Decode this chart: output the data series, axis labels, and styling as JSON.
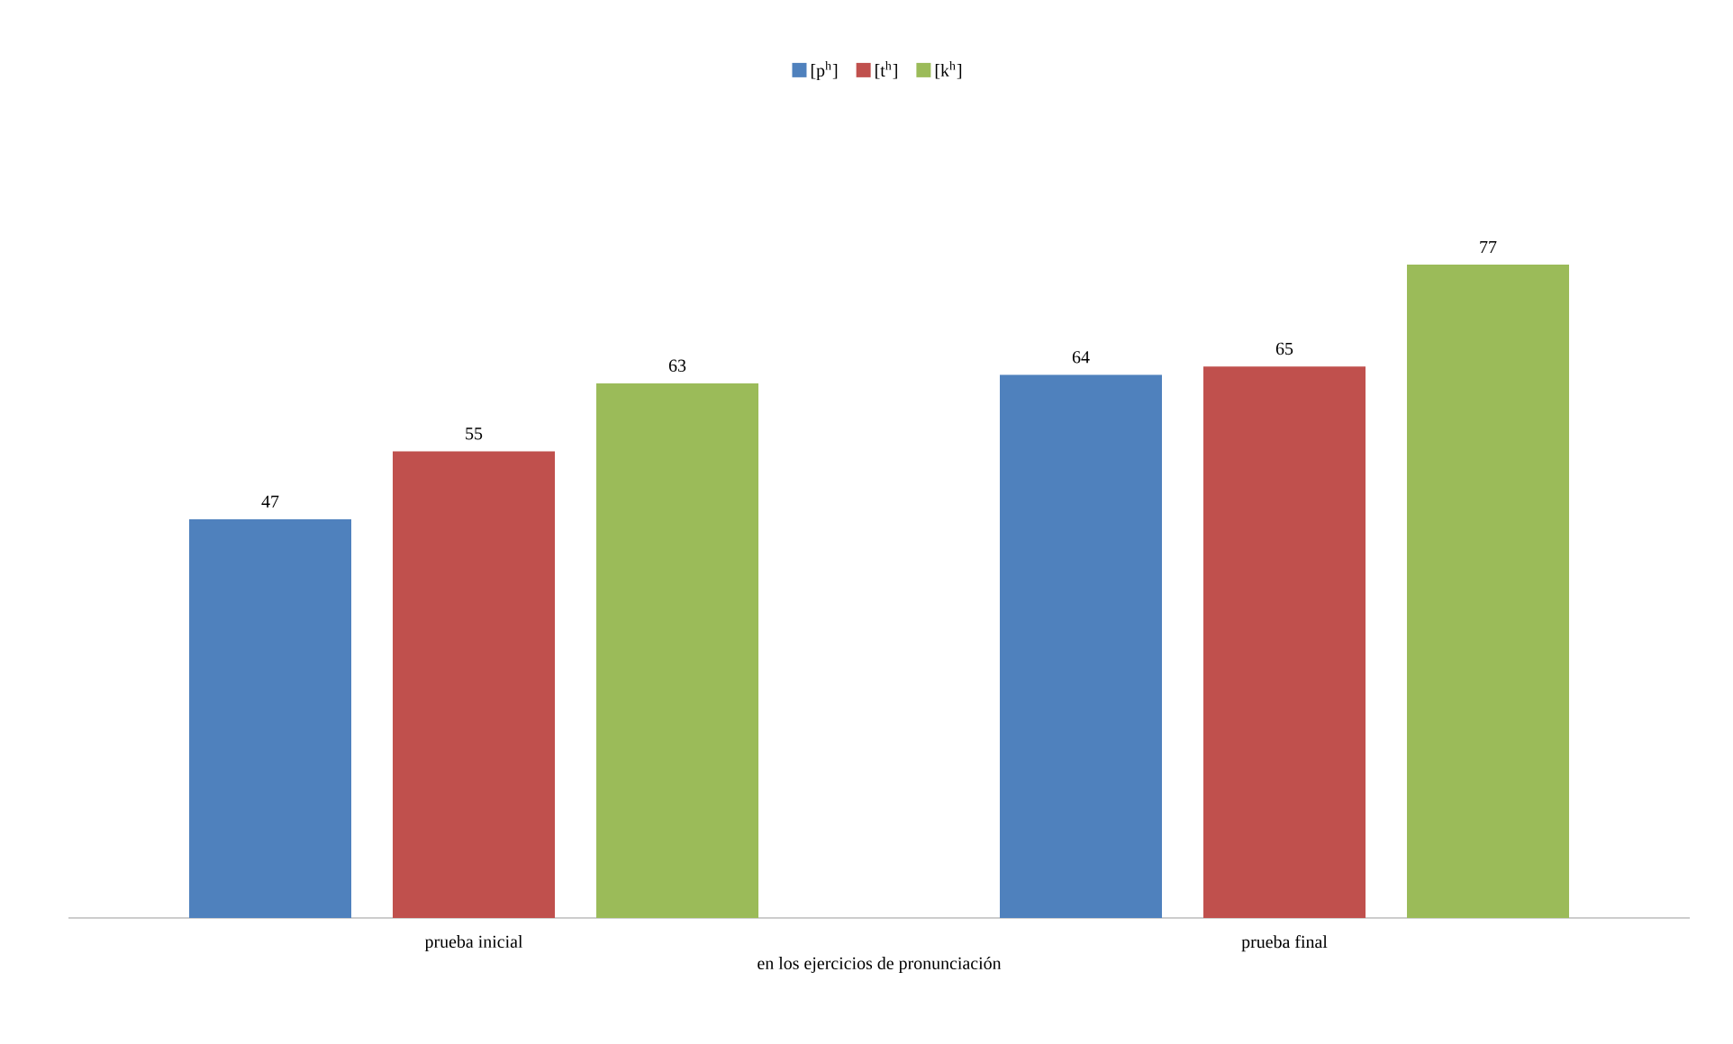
{
  "chart_data": {
    "type": "bar",
    "xlabel": "en los ejercicios de pronunciación",
    "categories": [
      "prueba inicial",
      "prueba final"
    ],
    "series": [
      {
        "name": "[p$^{h}$]",
        "color": "#4f81bd",
        "values": [
          47,
          64
        ]
      },
      {
        "name": "[t$^{h}$]",
        "color": "#c0504d",
        "values": [
          55,
          65
        ]
      },
      {
        "name": "[k$^{h}$]",
        "color": "#9bbb59",
        "values": [
          63,
          77
        ]
      }
    ],
    "data_labels": true,
    "legend": "top"
  }
}
